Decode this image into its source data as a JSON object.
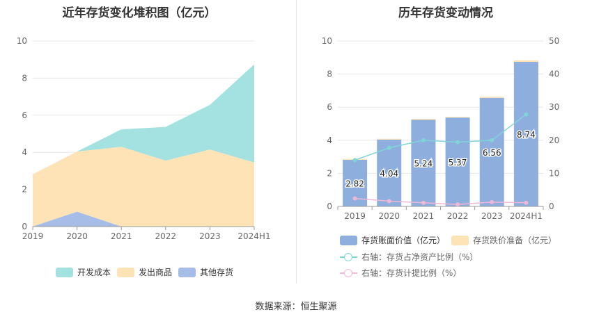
{
  "left": {
    "title": "近年存货变化堆积图（亿元）",
    "legend": [
      "开发成本",
      "发出商品",
      "其他存货"
    ]
  },
  "right": {
    "title": "历年存货变动情况",
    "legend": [
      "存货账面价值（亿元）",
      "存货跌价准备（亿元）",
      "右轴：存货占净资产比例（%）",
      "右轴：存货计提比例（%）"
    ]
  },
  "source": "数据来源：恒生聚源",
  "colors": {
    "dev_cost": "#a4e1e1",
    "shipped": "#fde3b5",
    "other": "#a6bde8",
    "bar": "#8eaedd",
    "provision": "#fde3b5",
    "ratio_net": "#7fd6d6",
    "ratio_prov": "#f0b7d6"
  },
  "chart_data": [
    {
      "type": "area",
      "title": "近年存货变化堆积图（亿元）",
      "x": [
        "2019",
        "2020",
        "2021",
        "2022",
        "2023",
        "2024H1"
      ],
      "ylim": [
        0,
        10
      ],
      "yticks": [
        0,
        2,
        4,
        6,
        8,
        10
      ],
      "stacked": true,
      "series": [
        {
          "name": "其他存货",
          "values": [
            0.0,
            0.8,
            0.0,
            0.0,
            0.0,
            0.0
          ]
        },
        {
          "name": "发出商品",
          "values": [
            2.82,
            3.24,
            4.3,
            3.55,
            4.15,
            3.45
          ]
        },
        {
          "name": "开发成本",
          "values": [
            0.0,
            0.0,
            0.94,
            1.82,
            2.41,
            5.29
          ]
        }
      ],
      "legend_position": "bottom"
    },
    {
      "type": "bar",
      "title": "历年存货变动情况",
      "categories": [
        "2019",
        "2020",
        "2021",
        "2022",
        "2023",
        "2024H1"
      ],
      "ylim": [
        0,
        10
      ],
      "yticks": [
        0,
        2,
        4,
        6,
        8,
        10
      ],
      "y2lim": [
        0,
        50
      ],
      "y2ticks": [
        0,
        10,
        20,
        30,
        40,
        50
      ],
      "series": [
        {
          "name": "存货账面价值（亿元）",
          "values": [
            2.82,
            4.04,
            5.24,
            5.37,
            6.56,
            8.74
          ],
          "labels": [
            "2.82",
            "4.04",
            "5.24",
            "5.37",
            "6.56",
            "8.74"
          ]
        },
        {
          "name": "存货跌价准备（亿元）",
          "values": [
            0.05,
            0.05,
            0.06,
            0.05,
            0.07,
            0.09
          ]
        },
        {
          "name": "右轴：存货占净资产比例（%）",
          "axis": "right",
          "values": [
            14.0,
            17.7,
            20.0,
            19.4,
            20.0,
            27.8
          ]
        },
        {
          "name": "右轴：存货计提比例（%）",
          "axis": "right",
          "values": [
            2.4,
            1.6,
            1.1,
            0.6,
            1.3,
            1.1
          ]
        }
      ],
      "legend_position": "bottom"
    }
  ]
}
